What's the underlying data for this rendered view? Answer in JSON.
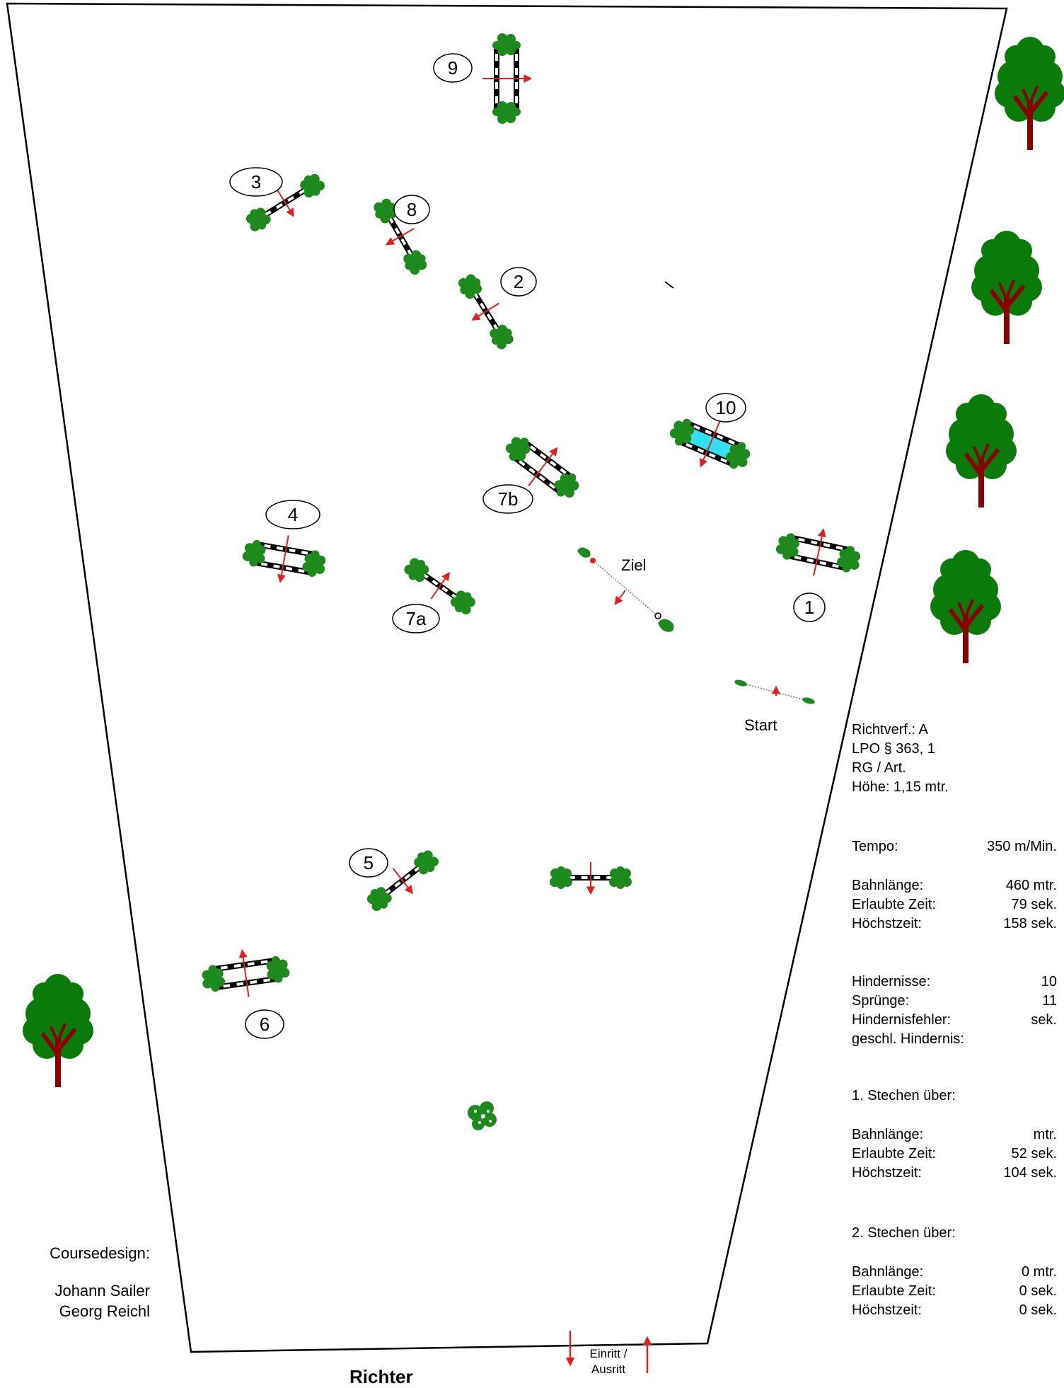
{
  "obstacle_numbers": [
    "9",
    "3",
    "8",
    "2",
    "10",
    "7b",
    "4",
    "7a",
    "1",
    "5",
    "6"
  ],
  "labels": {
    "ziel": "Ziel",
    "start": "Start",
    "richter": "Richter",
    "einritt_line1": "Einritt /",
    "einritt_line2": "Ausritt"
  },
  "rules": [
    {
      "text": "Richtverf.: A"
    },
    {
      "text": "LPO § 363, 1"
    },
    {
      "text": "RG / Art."
    },
    {
      "text": "Höhe: 1,15  mtr."
    }
  ],
  "tempo": {
    "label": "Tempo:",
    "value": "350  m/Min."
  },
  "course": [
    {
      "label": "Bahnlänge:",
      "value": "460  mtr."
    },
    {
      "label": "Erlaubte Zeit:",
      "value": "79  sek."
    },
    {
      "label": "Höchstzeit:",
      "value": "158  sek."
    }
  ],
  "obstacles_info": [
    {
      "label": "Hindernisse:",
      "value": "10"
    },
    {
      "label": "Sprünge:",
      "value": "11"
    },
    {
      "label": "Hindernisfehler:",
      "value": "sek."
    },
    {
      "label": "geschl. Hindernis:",
      "value": ""
    }
  ],
  "jumpoff1": {
    "title": "1. Stechen über:",
    "rows": [
      {
        "label": "Bahnlänge:",
        "value": "mtr."
      },
      {
        "label": "Erlaubte Zeit:",
        "value": "52  sek."
      },
      {
        "label": "Höchstzeit:",
        "value": "104  sek."
      }
    ]
  },
  "jumpoff2": {
    "title": "2. Stechen über:",
    "rows": [
      {
        "label": "Bahnlänge:",
        "value": "0  mtr."
      },
      {
        "label": "Erlaubte Zeit:",
        "value": "0  sek."
      },
      {
        "label": "Höchstzeit:",
        "value": "0  sek."
      }
    ]
  },
  "credits": {
    "title": "Coursedesign:",
    "name1": "Johann Sailer",
    "name2": "Georg Reichl"
  },
  "colors": {
    "arrow": "#e02020",
    "bush": "#1e8a1e",
    "water": "#33e0f0",
    "trunk": "#8b0000",
    "canopy": "#0a7a0a"
  }
}
